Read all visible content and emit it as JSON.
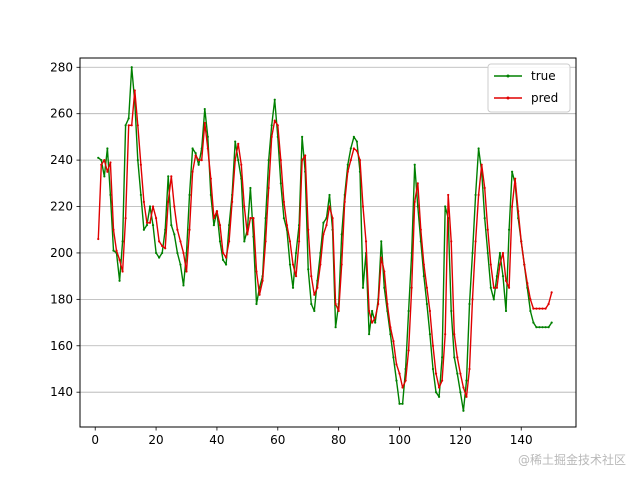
{
  "watermark": "@稀土掘金技术社区",
  "chart_data": {
    "type": "line",
    "title": "",
    "xlabel": "",
    "ylabel": "",
    "xlim": [
      -5,
      158
    ],
    "ylim": [
      125,
      284
    ],
    "xticks": [
      0,
      20,
      40,
      60,
      80,
      100,
      120,
      140
    ],
    "yticks": [
      140,
      160,
      180,
      200,
      220,
      240,
      260,
      280
    ],
    "grid": "horizontal",
    "legend_position": "upper-right",
    "series": [
      {
        "name": "true",
        "color": "#008000",
        "marker": "small-dot",
        "x": [
          1,
          2,
          3,
          4,
          5,
          6,
          7,
          8,
          9,
          10,
          11,
          12,
          13,
          14,
          15,
          16,
          17,
          18,
          19,
          20,
          21,
          22,
          23,
          24,
          25,
          26,
          27,
          28,
          29,
          30,
          31,
          32,
          33,
          34,
          35,
          36,
          37,
          38,
          39,
          40,
          41,
          42,
          43,
          44,
          45,
          46,
          47,
          48,
          49,
          50,
          51,
          52,
          53,
          54,
          55,
          56,
          57,
          58,
          59,
          60,
          61,
          62,
          63,
          64,
          65,
          66,
          67,
          68,
          69,
          70,
          71,
          72,
          73,
          74,
          75,
          76,
          77,
          78,
          79,
          80,
          81,
          82,
          83,
          84,
          85,
          86,
          87,
          88,
          89,
          90,
          91,
          92,
          93,
          94,
          95,
          96,
          97,
          98,
          99,
          100,
          101,
          102,
          103,
          104,
          105,
          106,
          107,
          108,
          109,
          110,
          111,
          112,
          113,
          114,
          115,
          116,
          117,
          118,
          119,
          120,
          121,
          122,
          123,
          124,
          125,
          126,
          127,
          128,
          129,
          130,
          131,
          132,
          133,
          134,
          135,
          136,
          137,
          138,
          139,
          140,
          141,
          142,
          143,
          144,
          145,
          146,
          147,
          148,
          149,
          150
        ],
        "y": [
          241,
          240,
          233,
          245,
          225,
          201,
          200,
          188,
          205,
          255,
          258,
          280,
          265,
          240,
          225,
          210,
          212,
          220,
          212,
          200,
          198,
          200,
          210,
          233,
          212,
          208,
          200,
          195,
          186,
          200,
          225,
          245,
          243,
          238,
          245,
          262,
          250,
          225,
          212,
          218,
          205,
          197,
          195,
          212,
          225,
          248,
          240,
          232,
          205,
          210,
          228,
          207,
          178,
          185,
          190,
          215,
          240,
          255,
          266,
          250,
          230,
          215,
          210,
          195,
          185,
          200,
          212,
          250,
          235,
          193,
          178,
          175,
          188,
          200,
          213,
          215,
          225,
          210,
          168,
          178,
          208,
          225,
          238,
          245,
          250,
          248,
          235,
          185,
          200,
          165,
          175,
          170,
          180,
          205,
          185,
          175,
          165,
          155,
          145,
          135,
          135,
          150,
          175,
          200,
          238,
          220,
          205,
          190,
          178,
          165,
          150,
          140,
          138,
          155,
          220,
          215,
          175,
          155,
          148,
          140,
          132,
          145,
          178,
          200,
          225,
          245,
          235,
          215,
          200,
          185,
          180,
          190,
          200,
          190,
          175,
          210,
          235,
          230,
          215,
          205,
          195,
          185,
          175,
          170,
          168,
          168,
          168,
          168,
          168,
          170
        ]
      },
      {
        "name": "pred",
        "color": "#e00000",
        "marker": "small-dot",
        "x": [
          1,
          2,
          3,
          4,
          5,
          6,
          7,
          8,
          9,
          10,
          11,
          12,
          13,
          14,
          15,
          16,
          17,
          18,
          19,
          20,
          21,
          22,
          23,
          24,
          25,
          26,
          27,
          28,
          29,
          30,
          31,
          32,
          33,
          34,
          35,
          36,
          37,
          38,
          39,
          40,
          41,
          42,
          43,
          44,
          45,
          46,
          47,
          48,
          49,
          50,
          51,
          52,
          53,
          54,
          55,
          56,
          57,
          58,
          59,
          60,
          61,
          62,
          63,
          64,
          65,
          66,
          67,
          68,
          69,
          70,
          71,
          72,
          73,
          74,
          75,
          76,
          77,
          78,
          79,
          80,
          81,
          82,
          83,
          84,
          85,
          86,
          87,
          88,
          89,
          90,
          91,
          92,
          93,
          94,
          95,
          96,
          97,
          98,
          99,
          100,
          101,
          102,
          103,
          104,
          105,
          106,
          107,
          108,
          109,
          110,
          111,
          112,
          113,
          114,
          115,
          116,
          117,
          118,
          119,
          120,
          121,
          122,
          123,
          124,
          125,
          126,
          127,
          128,
          129,
          130,
          131,
          132,
          133,
          134,
          135,
          136,
          137,
          138,
          139,
          140,
          141,
          142,
          143,
          144,
          145,
          146,
          147,
          148,
          149,
          150
        ],
        "y": [
          206,
          238,
          240,
          235,
          239,
          210,
          201,
          197,
          192,
          215,
          255,
          255,
          270,
          255,
          238,
          222,
          213,
          213,
          220,
          215,
          205,
          203,
          202,
          222,
          233,
          220,
          210,
          205,
          200,
          192,
          210,
          235,
          242,
          240,
          240,
          256,
          245,
          232,
          215,
          218,
          212,
          200,
          198,
          205,
          222,
          240,
          247,
          238,
          220,
          208,
          215,
          215,
          192,
          182,
          188,
          205,
          228,
          250,
          257,
          255,
          240,
          222,
          212,
          205,
          195,
          190,
          205,
          240,
          242,
          210,
          190,
          182,
          185,
          195,
          208,
          212,
          220,
          215,
          178,
          175,
          195,
          222,
          235,
          240,
          245,
          244,
          240,
          220,
          205,
          175,
          170,
          172,
          178,
          198,
          192,
          178,
          168,
          162,
          152,
          148,
          142,
          145,
          158,
          185,
          222,
          230,
          210,
          195,
          185,
          175,
          160,
          148,
          142,
          145,
          165,
          225,
          205,
          165,
          155,
          148,
          142,
          138,
          150,
          180,
          205,
          225,
          238,
          228,
          210,
          195,
          185,
          185,
          195,
          200,
          188,
          185,
          220,
          232,
          218,
          205,
          195,
          187,
          180,
          176,
          176,
          176,
          176,
          176,
          178,
          183
        ]
      }
    ]
  }
}
